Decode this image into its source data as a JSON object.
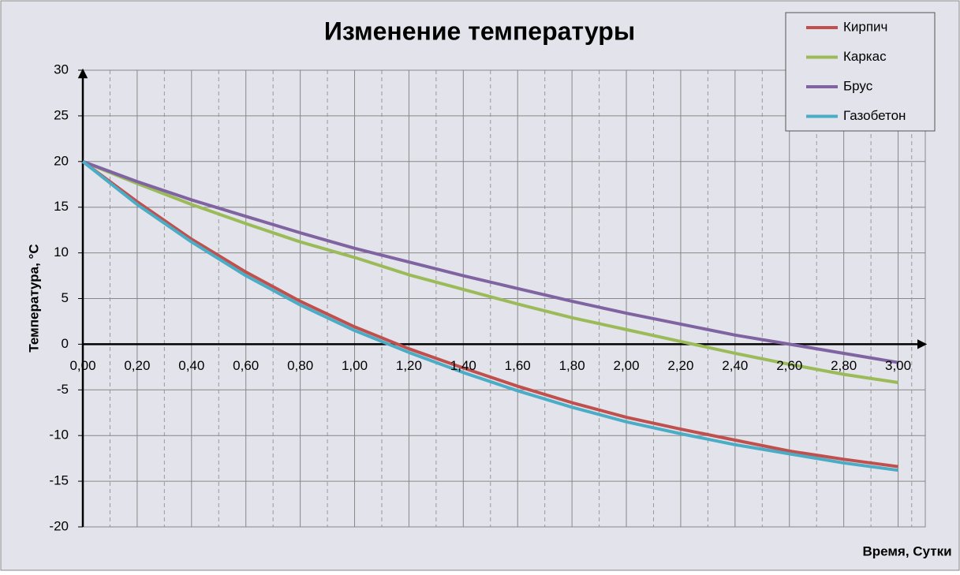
{
  "chart_data": {
    "type": "line",
    "title": "Изменение температуры",
    "x_label": "Время, Сутки",
    "y_label": "Температура, °С",
    "x": [
      0,
      0.2,
      0.4,
      0.6,
      0.8,
      1.0,
      1.2,
      1.4,
      1.6,
      1.8,
      2.0,
      2.2,
      2.4,
      2.6,
      2.8,
      3.0
    ],
    "series": [
      {
        "name": "Кирпич",
        "color": "#c0504d",
        "values": [
          20,
          15.6,
          11.5,
          7.9,
          4.7,
          1.9,
          -0.5,
          -2.6,
          -4.6,
          -6.4,
          -8.0,
          -9.3,
          -10.5,
          -11.7,
          -12.6,
          -13.4
        ]
      },
      {
        "name": "Каркас",
        "color": "#9bbb59",
        "values": [
          20,
          17.6,
          15.3,
          13.2,
          11.2,
          9.5,
          7.6,
          6.0,
          4.4,
          2.9,
          1.6,
          0.3,
          -1.0,
          -2.2,
          -3.3,
          -4.2
        ]
      },
      {
        "name": "Брус",
        "color": "#8064a2",
        "values": [
          20,
          17.8,
          15.8,
          14.0,
          12.2,
          10.5,
          9.0,
          7.5,
          6.1,
          4.7,
          3.4,
          2.2,
          1.0,
          0.0,
          -1.0,
          -2.0
        ]
      },
      {
        "name": "Газобетон",
        "color": "#4bacc6",
        "values": [
          20,
          15.3,
          11.2,
          7.5,
          4.3,
          1.5,
          -0.9,
          -3.1,
          -5.1,
          -6.9,
          -8.5,
          -9.8,
          -11.0,
          -12.0,
          -13.0,
          -13.8
        ]
      }
    ],
    "xlim": [
      0,
      3.1
    ],
    "ylim": [
      -20,
      30
    ],
    "xticks": [
      {
        "value": 0,
        "label": "0,00"
      },
      {
        "value": 0.2,
        "label": "0,20"
      },
      {
        "value": 0.4,
        "label": "0,40"
      },
      {
        "value": 0.6,
        "label": "0,60"
      },
      {
        "value": 0.8,
        "label": "0,80"
      },
      {
        "value": 1.0,
        "label": "1,00"
      },
      {
        "value": 1.2,
        "label": "1,20"
      },
      {
        "value": 1.4,
        "label": "1,40"
      },
      {
        "value": 1.6,
        "label": "1,60"
      },
      {
        "value": 1.8,
        "label": "1,80"
      },
      {
        "value": 2.0,
        "label": "2,00"
      },
      {
        "value": 2.2,
        "label": "2,20"
      },
      {
        "value": 2.4,
        "label": "2,40"
      },
      {
        "value": 2.6,
        "label": "2,60"
      },
      {
        "value": 2.8,
        "label": "2,80"
      },
      {
        "value": 3.0,
        "label": "3,00"
      }
    ],
    "yticks": [
      -20,
      -15,
      -10,
      -5,
      0,
      5,
      10,
      15,
      20,
      25,
      30
    ],
    "grid": true,
    "legend": "top-right"
  }
}
